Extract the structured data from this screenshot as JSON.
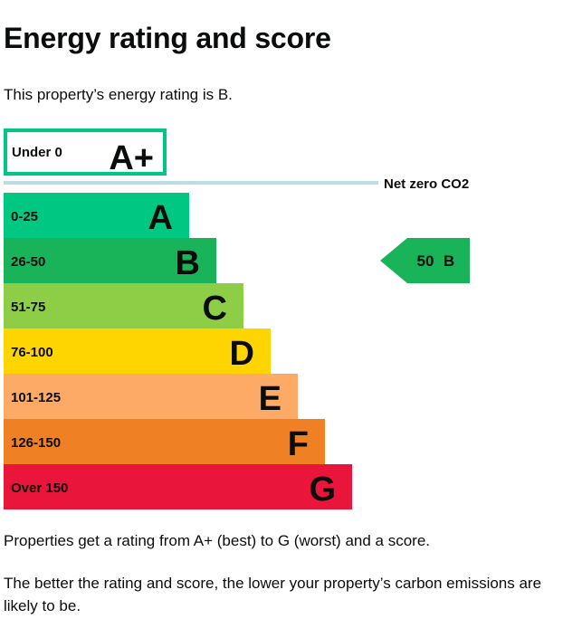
{
  "page": {
    "title": "Energy rating and score",
    "intro": "This property’s energy rating is B.",
    "footer_p1": "Properties get a rating from A+ (best) to G (worst) and a score.",
    "footer_p2": "The better the rating and score, the lower your property’s carbon emissions are likely to be."
  },
  "chart_data": {
    "type": "bar",
    "categories": [
      "A+",
      "A",
      "B",
      "C",
      "D",
      "E",
      "F",
      "G"
    ],
    "ranges": [
      "Under 0",
      "0-25",
      "26-50",
      "51-75",
      "76-100",
      "101-125",
      "126-150",
      "Over 150"
    ],
    "colors": [
      "#ffffff",
      "#00c781",
      "#19b459",
      "#8dce46",
      "#ffd500",
      "#fcaa65",
      "#ef8023",
      "#e9153b"
    ],
    "highlight_border_color": "#00c781",
    "net_zero_label": "Net zero CO2",
    "net_zero_line_color": "#b8dde6",
    "current": {
      "score": "50",
      "rating": "B",
      "color": "#19b459"
    }
  }
}
